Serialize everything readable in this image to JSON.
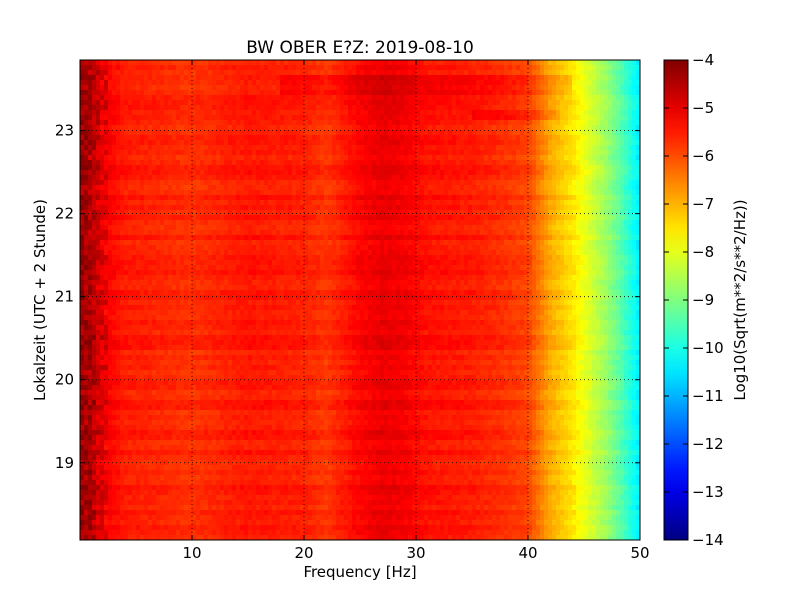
{
  "chart_data": {
    "type": "heatmap",
    "title": "BW OBER E?Z: 2019-08-10",
    "xlabel": "Frequency [Hz]",
    "ylabel": "Lokalzeit (UTC + 2 Stunde)",
    "xlim": [
      0,
      50
    ],
    "ylim": [
      23.85,
      18.07
    ],
    "x_ticks": [
      10,
      20,
      30,
      40,
      50
    ],
    "x_tick_labels": [
      "10",
      "20",
      "30",
      "40",
      "50"
    ],
    "y_ticks": [
      19,
      20,
      21,
      22,
      23
    ],
    "y_tick_labels": [
      "19",
      "20",
      "21",
      "22",
      "23"
    ],
    "grid": true,
    "colormap": "jet",
    "colorbar": {
      "label": "Log10(Sqrt(m**2/s**2/Hz))",
      "range": [
        -14,
        -4
      ],
      "ticks": [
        -4,
        -5,
        -6,
        -7,
        -8,
        -9,
        -10,
        -11,
        -12,
        -13,
        -14
      ],
      "tick_labels": [
        "−4",
        "−5",
        "−6",
        "−7",
        "−8",
        "−9",
        "−10",
        "−11",
        "−12",
        "−13",
        "−14"
      ]
    },
    "frequency_profile": {
      "freq_hz": [
        0,
        1,
        2,
        4,
        6,
        10,
        15,
        20,
        22,
        25,
        27,
        29,
        31,
        35,
        38,
        40,
        41,
        42,
        43,
        44,
        45,
        46,
        47,
        48,
        49,
        50
      ],
      "log10_amplitude": [
        -4.4,
        -4.6,
        -5.1,
        -5.5,
        -5.55,
        -5.7,
        -5.45,
        -5.55,
        -5.75,
        -5.25,
        -5.05,
        -5.15,
        -5.4,
        -5.5,
        -5.7,
        -5.9,
        -6.4,
        -6.9,
        -7.2,
        -7.5,
        -7.9,
        -8.3,
        -8.7,
        -9.2,
        -9.8,
        -10.4
      ]
    }
  }
}
